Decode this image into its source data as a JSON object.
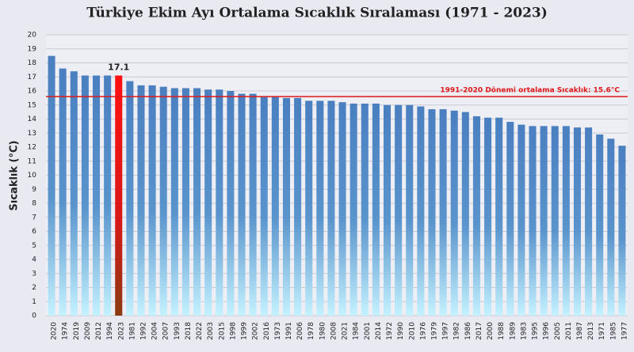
{
  "chart_data": {
    "type": "bar",
    "title": "Türkiye Ekim Ayı Ortalama Sıcaklık Sıralaması (1971 - 2023)",
    "y_label": "Sıcaklık (°C)",
    "categories": [
      "2020",
      "1974",
      "2019",
      "2009",
      "2012",
      "1994",
      "2023",
      "1981",
      "1992",
      "2004",
      "2007",
      "1993",
      "2018",
      "2022",
      "2003",
      "2015",
      "1998",
      "1999",
      "2002",
      "2016",
      "1973",
      "1991",
      "2006",
      "1978",
      "1980",
      "2008",
      "2021",
      "1984",
      "2001",
      "2014",
      "1972",
      "1990",
      "2010",
      "1976",
      "1979",
      "1997",
      "1982",
      "1986",
      "2017",
      "2000",
      "1988",
      "1989",
      "1983",
      "1995",
      "1996",
      "2005",
      "2011",
      "1987",
      "2013",
      "1971",
      "1985",
      "1977"
    ],
    "values": [
      18.5,
      17.6,
      17.4,
      17.1,
      17.1,
      17.1,
      17.1,
      16.7,
      16.4,
      16.4,
      16.3,
      16.2,
      16.2,
      16.2,
      16.1,
      16.1,
      16.0,
      15.8,
      15.8,
      15.6,
      15.6,
      15.5,
      15.5,
      15.3,
      15.3,
      15.3,
      15.2,
      15.1,
      15.1,
      15.1,
      15.0,
      15.0,
      15.0,
      14.9,
      14.7,
      14.7,
      14.6,
      14.5,
      14.2,
      14.1,
      14.1,
      13.8,
      13.6,
      13.5,
      13.5,
      13.5,
      13.5,
      13.4,
      13.4,
      12.9,
      12.6,
      12.1
    ],
    "color": "#4a7fc0",
    "highlight_category": "2023",
    "highlight_color": "#ff1010",
    "reference_line": {
      "value": 15.6,
      "label": "1991-2020 Dönemi ortalama Sıcaklık: 15.6°C",
      "color": "#e01818"
    },
    "ylim": [
      0,
      20
    ],
    "yticks": [
      0,
      1,
      2,
      3,
      4,
      5,
      6,
      7,
      8,
      9,
      10,
      11,
      12,
      13,
      14,
      15,
      16,
      17,
      18,
      19,
      20
    ],
    "grid": true
  }
}
